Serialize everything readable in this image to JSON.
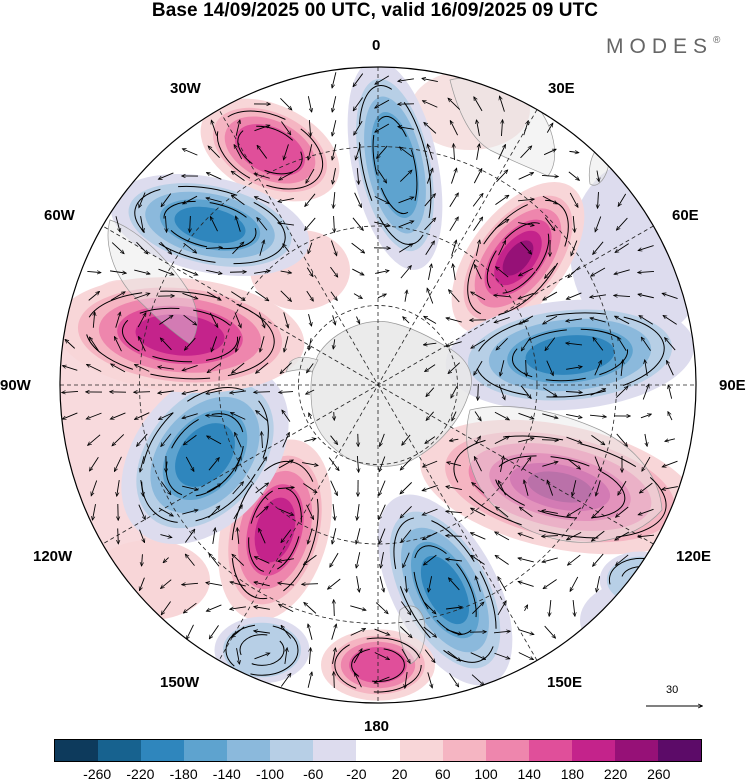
{
  "title": "Base 14/09/2025 00 UTC, valid 16/09/2025 09 UTC",
  "brand": "MODES",
  "brand_mark": "®",
  "longitude_labels": [
    "0",
    "30E",
    "60E",
    "90E",
    "120E",
    "150E",
    "180",
    "150W",
    "120W",
    "90W",
    "60W",
    "30W"
  ],
  "reference_vector": "30",
  "colorbar": {
    "colors": [
      "#0d3a5c",
      "#17628f",
      "#2f86bd",
      "#5ea3cf",
      "#8bb9dc",
      "#b7cfe6",
      "#dddcee",
      "#ffffff",
      "#f8d6d8",
      "#f5b5c2",
      "#ee86ad",
      "#e04f9a",
      "#c4238b",
      "#961177",
      "#5c0b68"
    ],
    "ticks": [
      "-260",
      "-220",
      "-180",
      "-140",
      "-100",
      "-60",
      "-20",
      "20",
      "60",
      "100",
      "140",
      "180",
      "220",
      "260"
    ]
  },
  "map": {
    "center": "South Pole",
    "field": "anomaly",
    "anomalies": [
      {
        "name": "positive-anomaly-30w",
        "sign": "positive",
        "value": 180
      },
      {
        "name": "negative-anomaly-0",
        "sign": "negative",
        "value": -180
      },
      {
        "name": "positive-anomaly-50e",
        "sign": "positive",
        "value": 260
      },
      {
        "name": "negative-anomaly-90e",
        "sign": "negative",
        "value": -220
      },
      {
        "name": "positive-anomaly-120e",
        "sign": "positive",
        "value": 260
      },
      {
        "name": "negative-anomaly-160e",
        "sign": "negative",
        "value": -220
      },
      {
        "name": "positive-anomaly-180",
        "sign": "positive",
        "value": 180
      },
      {
        "name": "positive-anomaly-140w",
        "sign": "positive",
        "value": 220
      },
      {
        "name": "negative-anomaly-110w",
        "sign": "negative",
        "value": -220
      },
      {
        "name": "positive-anomaly-80w",
        "sign": "positive",
        "value": 220
      },
      {
        "name": "negative-anomaly-60w",
        "sign": "negative",
        "value": -220
      },
      {
        "name": "negative-anomaly-150w",
        "sign": "negative",
        "value": -100
      },
      {
        "name": "negative-anomaly-130e",
        "sign": "negative",
        "value": -100
      }
    ]
  }
}
